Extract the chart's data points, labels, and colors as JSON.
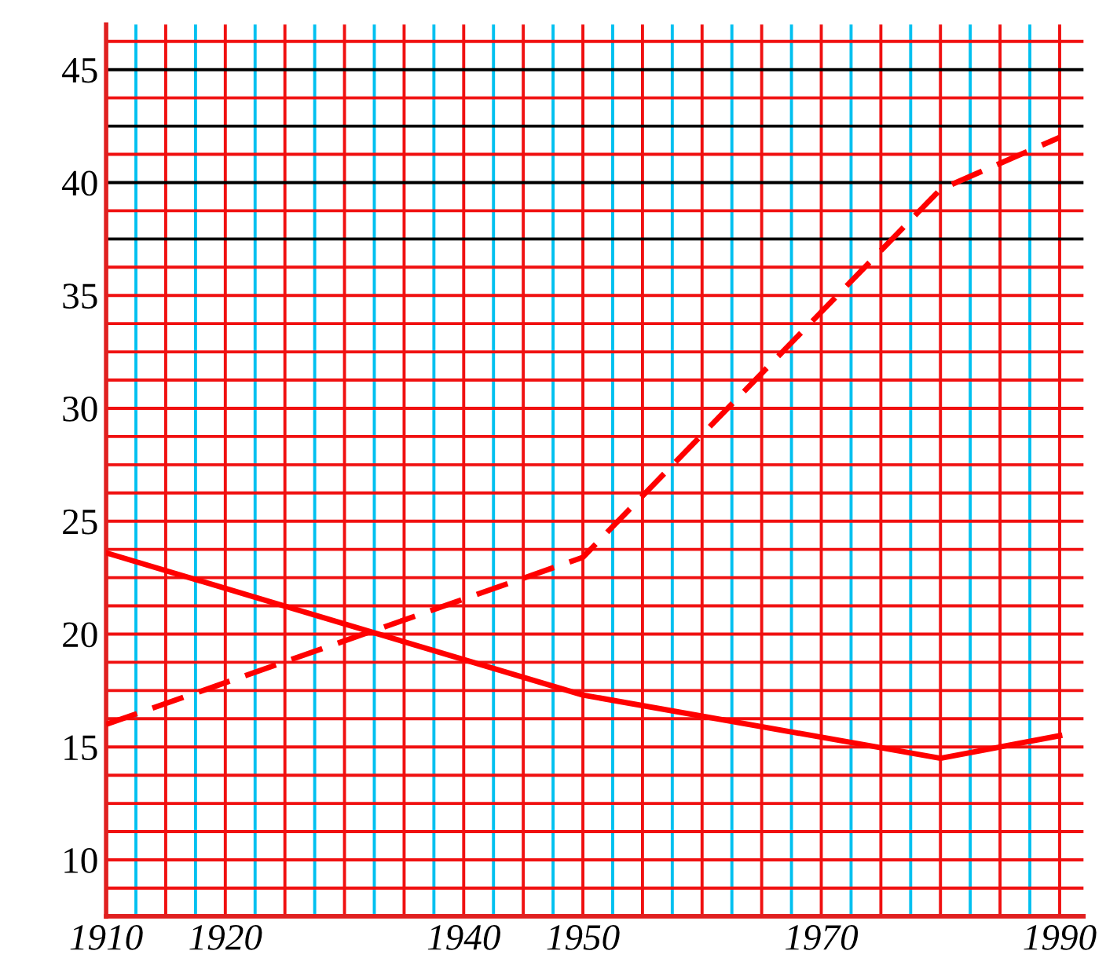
{
  "chart_data": {
    "type": "line",
    "x": [
      1910,
      1950,
      1980,
      1990
    ],
    "series": [
      {
        "color": "#ff0000",
        "line_style": "solid",
        "values": [
          23.6,
          17.3,
          14.5,
          15.5
        ]
      },
      {
        "color": "#ff0000",
        "line_style": "dashed",
        "x": [
          1910,
          1950,
          1980,
          1990
        ],
        "values": [
          16.0,
          23.4,
          39.7,
          42.0
        ]
      }
    ],
    "xlim": [
      1910,
      1992
    ],
    "ylim": [
      7.5,
      47
    ],
    "xticks": [
      1910,
      {
        "value": 1912.5,
        "label": null
      },
      {
        "value": 1915,
        "label": null
      },
      {
        "value": 1917.5,
        "label": null
      },
      1920,
      {
        "value": 1922.5,
        "label": null
      },
      {
        "value": 1925,
        "label": null
      },
      {
        "value": 1927.5,
        "label": null
      },
      {
        "value": 1930,
        "label": null
      },
      {
        "value": 1932.5,
        "label": null
      },
      {
        "value": 1935,
        "label": null
      },
      {
        "value": 1937.5,
        "label": null
      },
      1940,
      {
        "value": 1942.5,
        "label": null
      },
      {
        "value": 1945,
        "label": null
      },
      {
        "value": 1947.5,
        "label": null
      },
      1950,
      {
        "value": 1952.5,
        "label": null
      },
      {
        "value": 1955,
        "label": null
      },
      {
        "value": 1957.5,
        "label": null
      },
      {
        "value": 1960,
        "label": null
      },
      {
        "value": 1962.5,
        "label": null
      },
      {
        "value": 1965,
        "label": null
      },
      {
        "value": 1967.5,
        "label": null
      },
      1970,
      {
        "value": 1972.5,
        "label": null
      },
      {
        "value": 1975,
        "label": null
      },
      {
        "value": 1977.5,
        "label": null
      },
      {
        "value": 1980,
        "label": null
      },
      {
        "value": 1982.5,
        "label": null
      },
      {
        "value": 1985,
        "label": null
      },
      {
        "value": 1987.5,
        "label": null
      },
      1990
    ],
    "yticks": [
      10,
      15,
      20,
      25,
      30,
      35,
      40,
      45
    ],
    "grid": true,
    "marker": "none"
  }
}
